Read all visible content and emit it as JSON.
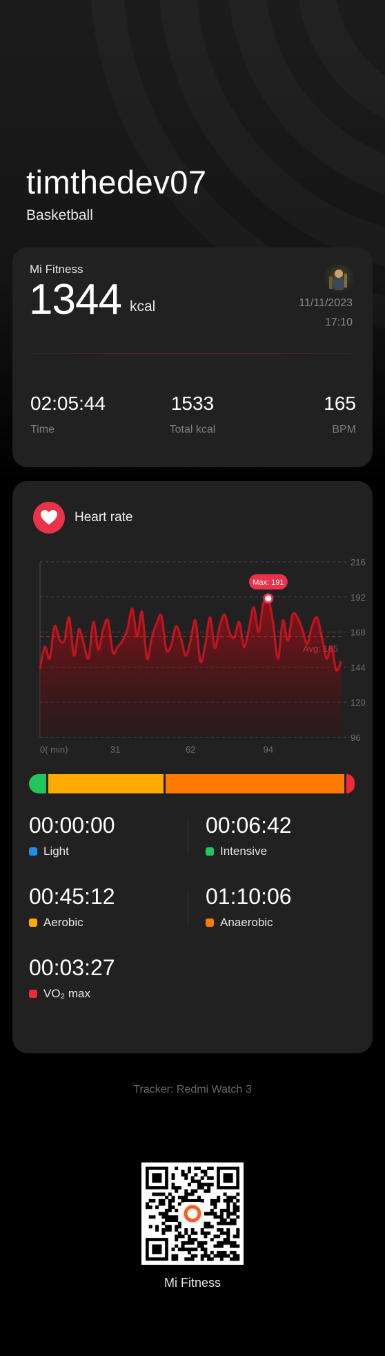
{
  "profile": {
    "username": "timthedev07",
    "sport": "Basketball"
  },
  "summary": {
    "brand": "Mi Fitness",
    "kcal": "1344",
    "kcal_unit": "kcal",
    "date": "11/11/2023",
    "time": "17:10",
    "stats": [
      {
        "value": "02:05:44",
        "label": "Time"
      },
      {
        "value": "1533",
        "label": "Total kcal"
      },
      {
        "value": "165",
        "label": "BPM"
      }
    ]
  },
  "heart_rate": {
    "title": "Heart rate",
    "max_label": "Max: 191",
    "avg_label": "Avg: 165",
    "colors": {
      "accent": "#e8334a",
      "line": "#c0141f"
    }
  },
  "chart_data": {
    "type": "area",
    "xlabel": "",
    "ylabel": "",
    "x_ticks": [
      "0( min)",
      "31",
      "62",
      "94"
    ],
    "y_ticks": [
      216,
      192,
      168,
      144,
      120,
      96
    ],
    "ylim": [
      96,
      216
    ],
    "xlim": [
      0,
      125
    ],
    "max": 191,
    "avg": 165,
    "series": [
      {
        "x": [
          0,
          2,
          4,
          6,
          8,
          10,
          12,
          14,
          16,
          18,
          20,
          22,
          24,
          26,
          28,
          30,
          32,
          34,
          36,
          38,
          40,
          42,
          44,
          46,
          48,
          50,
          52,
          54,
          56,
          58,
          60,
          62,
          64,
          66,
          68,
          70,
          72,
          74,
          76,
          78,
          80,
          82,
          84,
          86,
          88,
          90,
          92,
          94,
          96,
          98,
          100,
          102,
          104,
          106,
          108,
          110,
          112,
          114,
          116,
          118,
          120,
          122,
          124
        ],
        "values": [
          143,
          158,
          150,
          172,
          163,
          162,
          178,
          152,
          170,
          160,
          150,
          175,
          156,
          170,
          176,
          154,
          158,
          162,
          170,
          184,
          165,
          182,
          150,
          164,
          174,
          179,
          156,
          159,
          172,
          164,
          152,
          162,
          176,
          148,
          159,
          178,
          157,
          172,
          180,
          168,
          164,
          175,
          158,
          170,
          185,
          168,
          188,
          191,
          174,
          150,
          176,
          162,
          180,
          178,
          170,
          160,
          172,
          178,
          165,
          150,
          158,
          142,
          148
        ]
      }
    ]
  },
  "zones": {
    "bar": [
      {
        "name": "Intensive",
        "color": "#22c55e",
        "fraction": 0.054
      },
      {
        "name": "Aerobic",
        "color": "#ffaa00",
        "fraction": 0.359
      },
      {
        "name": "Anaerobic",
        "color": "#ff7a00",
        "fraction": 0.557
      },
      {
        "name": "VO₂ max",
        "color": "#f0293a",
        "fraction": 0.026
      }
    ],
    "items": [
      {
        "value": "00:00:00",
        "label": "Light",
        "color": "#1e8fe6"
      },
      {
        "value": "00:06:42",
        "label": "Intensive",
        "color": "#22c55e"
      },
      {
        "value": "00:45:12",
        "label": "Aerobic",
        "color": "#ffaa00"
      },
      {
        "value": "01:10:06",
        "label": "Anaerobic",
        "color": "#ff7a00"
      },
      {
        "value": "00:03:27",
        "label": "VO₂ max",
        "color": "#f0293a"
      }
    ]
  },
  "footer": {
    "tracker": "Tracker: Redmi Watch 3",
    "qr_label": "Mi Fitness",
    "qr_center_color": "#ff5a1f"
  }
}
